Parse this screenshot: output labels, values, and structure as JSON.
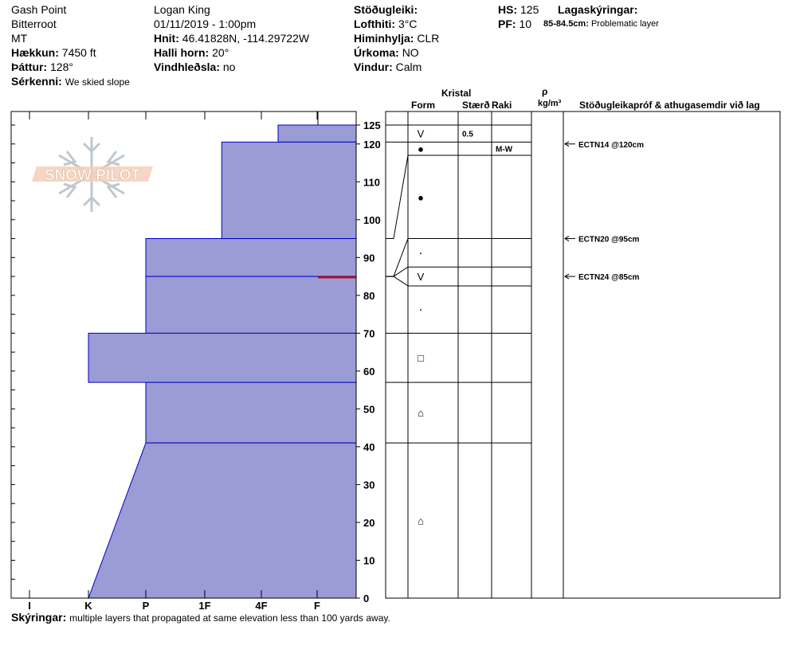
{
  "header": {
    "location": "Gash Point",
    "range": "Bitterroot",
    "state": "MT",
    "observer": "Logan King",
    "datetime": "01/11/2019 - 1:00pm",
    "elevation_label": "Hækkun:",
    "elevation": "7450 ft",
    "aspect_label": "Þáttur:",
    "aspect": "128°",
    "specifics_label": "Sérkenni:",
    "specifics": "We skied slope",
    "coords_label": "Hnit:",
    "coords": "46.41828N, -114.29722W",
    "slope_label": "Halli horn:",
    "slope": "20°",
    "wind_loading_label": "Vindhleðsla:",
    "wind_loading": "no",
    "stability_label": "Stöðugleiki:",
    "air_temp_label": "Lofthiti:",
    "air_temp": "3°C",
    "sky_label": "Himinhylja:",
    "sky": "CLR",
    "precip_label": "Úrkoma:",
    "precip": "NO",
    "wind_label": "Vindur:",
    "wind": "Calm",
    "hs_label": "HS:",
    "hs": "125",
    "pf_label": "PF:",
    "pf": "10",
    "layers_label": "Lagaskýringar:",
    "problem_range": "85-84.5cm:",
    "problem_text": "Problematic layer"
  },
  "logo": {
    "text": "SNOW PILOT"
  },
  "columns": {
    "crystal": "Kristal",
    "form": "Form",
    "size": "Stærð",
    "moisture": "Raki",
    "rho": "ρ",
    "density_unit": "kg/m³",
    "tests": "Stöðugleikapróf & athugasemdir við lag"
  },
  "footer": {
    "label": "Skýringar:",
    "text": "multiple layers that propagated at same elevation less than 100 yards away."
  },
  "chart_data": {
    "type": "bar",
    "title": "",
    "x_categories": [
      "I",
      "K",
      "P",
      "1F",
      "4F",
      "F"
    ],
    "ylim": [
      0,
      125
    ],
    "y_ticks": [
      0,
      10,
      20,
      30,
      40,
      50,
      60,
      70,
      80,
      90,
      100,
      110,
      120,
      125
    ],
    "hardness_layers": [
      {
        "top": 125,
        "bottom": 120.5,
        "hardness_top": 4.3,
        "hardness_bottom": 4.3
      },
      {
        "top": 120.5,
        "bottom": 95,
        "hardness_top": 3.3,
        "hardness_bottom": 3.3
      },
      {
        "top": 95,
        "bottom": 85,
        "hardness_top": 2.0,
        "hardness_bottom": 2.0
      },
      {
        "top": 85,
        "bottom": 70,
        "hardness_top": 2.0,
        "hardness_bottom": 2.0
      },
      {
        "top": 70,
        "bottom": 57,
        "hardness_top": 1.0,
        "hardness_bottom": 1.0
      },
      {
        "top": 57,
        "bottom": 41,
        "hardness_top": 2.0,
        "hardness_bottom": 2.0
      },
      {
        "top": 41,
        "bottom": 0,
        "hardness_top": 2.0,
        "hardness_bottom": 1.0
      }
    ],
    "problem_layer": {
      "top": 85,
      "bottom": 84.5
    },
    "layer_table": [
      {
        "top": 125,
        "bottom": 120.5,
        "form": "V",
        "size": "0.5",
        "moisture": ""
      },
      {
        "top": 120.5,
        "bottom": 117,
        "form": "●",
        "size": "",
        "moisture": "M-W"
      },
      {
        "top": 117,
        "bottom": 95,
        "form": "●",
        "size": "",
        "moisture": ""
      },
      {
        "top": 95,
        "bottom": 87.5,
        "form": "·",
        "size": "",
        "moisture": ""
      },
      {
        "top": 87.5,
        "bottom": 82.5,
        "form": "V",
        "size": "",
        "moisture": ""
      },
      {
        "top": 82.5,
        "bottom": 70,
        "form": "·",
        "size": "",
        "moisture": ""
      },
      {
        "top": 70,
        "bottom": 57,
        "form": "□",
        "size": "",
        "moisture": ""
      },
      {
        "top": 57,
        "bottom": 41,
        "form": "⌂",
        "size": "",
        "moisture": ""
      },
      {
        "top": 41,
        "bottom": 0,
        "form": "⌂",
        "size": "",
        "moisture": ""
      }
    ],
    "tests": [
      {
        "height": 120,
        "label": "ECTN14 @120cm"
      },
      {
        "height": 95,
        "label": "ECTN20 @95cm"
      },
      {
        "height": 85,
        "label": "ECTN24 @85cm"
      }
    ],
    "colors": {
      "fill": "#9b9bd6",
      "stroke": "#0000cc",
      "problem": "#cc0000"
    }
  }
}
